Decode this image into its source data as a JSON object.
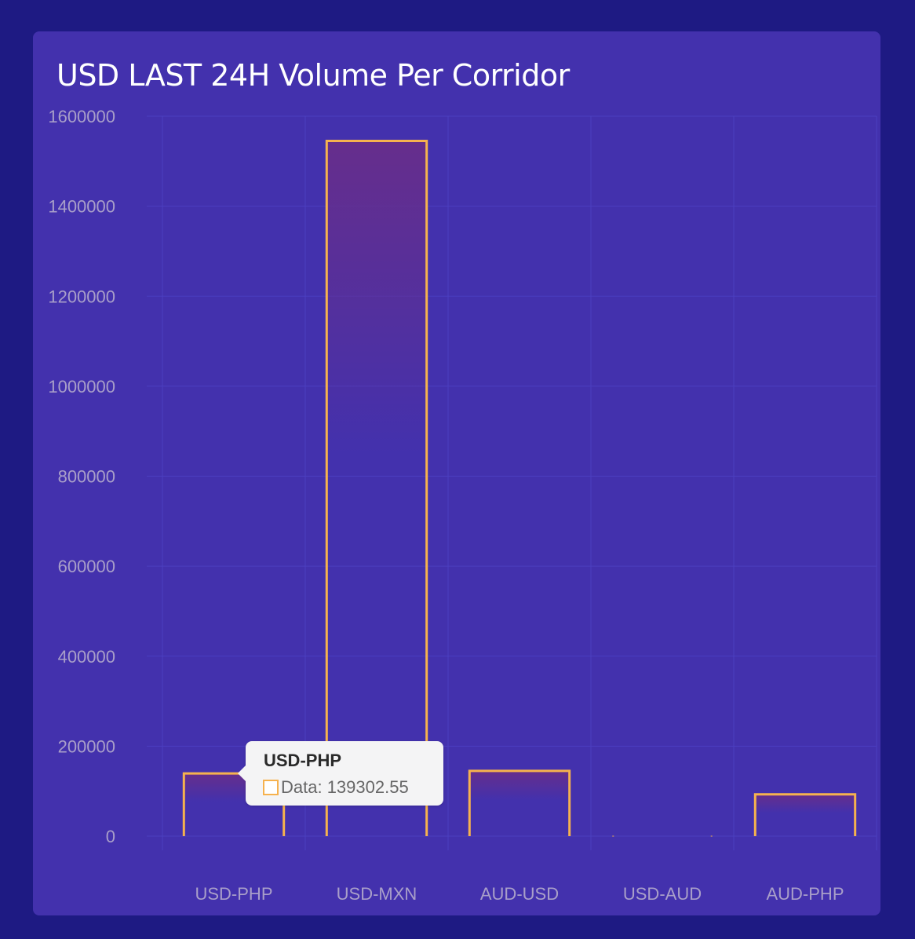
{
  "chart_title": "USD LAST 24H Volume Per Corridor",
  "colors": {
    "page_background": "#1e1a83",
    "card_background": "#4331ad",
    "bar_border": "#f6b24e",
    "bar_fill_top": "#662e8c",
    "grid": "#4b3fc0",
    "axis_text": "#a99fc9"
  },
  "chart_data": {
    "type": "bar",
    "title": "USD LAST 24H Volume Per Corridor",
    "xlabel": "",
    "ylabel": "",
    "categories": [
      "USD-PHP",
      "USD-MXN",
      "AUD-USD",
      "USD-AUD",
      "AUD-PHP"
    ],
    "series": [
      {
        "name": "Data",
        "values": [
          139302.55,
          1545000,
          145000,
          0,
          93000
        ]
      }
    ],
    "ylim": [
      0,
      1600000
    ],
    "yticks": [
      "0",
      "200000",
      "400000",
      "600000",
      "800000",
      "1000000",
      "1200000",
      "1400000",
      "1600000"
    ],
    "grid": true,
    "legend": "none"
  },
  "tooltip": {
    "title": "USD-PHP",
    "label": "Data: 139302.55"
  }
}
